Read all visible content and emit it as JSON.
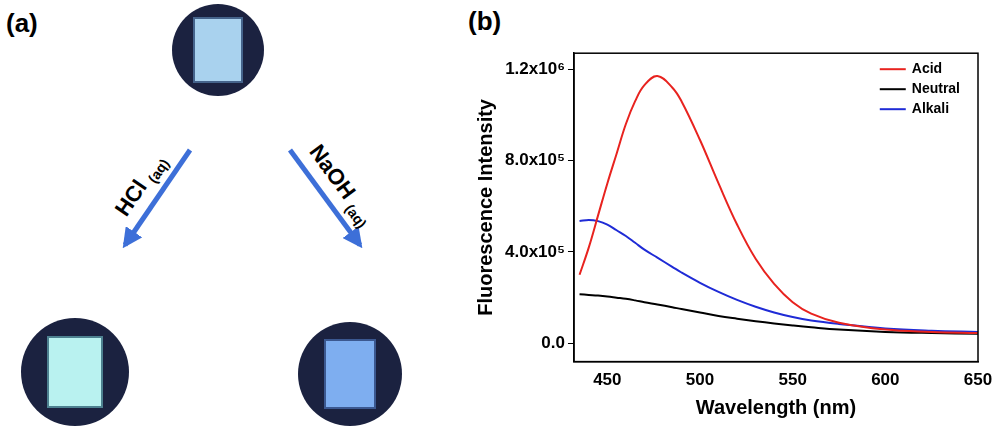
{
  "panels": {
    "a": {
      "label": "(a)",
      "arrows": [
        {
          "reagent": "HCl",
          "subscript": "(aq)"
        },
        {
          "reagent": "NaOH",
          "subscript": "(aq)"
        }
      ]
    },
    "b": {
      "label": "(b)"
    }
  },
  "chart_data": {
    "type": "line",
    "x_label": "Wavelength (nm)",
    "y_label": "Fluorescence Intensity",
    "x": [
      435,
      440,
      445,
      450,
      455,
      460,
      465,
      470,
      477,
      485,
      490,
      500,
      510,
      520,
      530,
      540,
      550,
      560,
      575,
      600,
      625,
      650
    ],
    "series": [
      {
        "name": "Acid",
        "color": "#e8231f",
        "values": [
          300000,
          420000,
          560000,
          700000,
          830000,
          960000,
          1060000,
          1130000,
          1170000,
          1120000,
          1060000,
          890000,
          700000,
          520000,
          370000,
          260000,
          180000,
          130000,
          90000,
          60000,
          50000,
          45000
        ]
      },
      {
        "name": "Neutral",
        "color": "#000000",
        "values": [
          215000,
          212000,
          209000,
          205000,
          200000,
          195000,
          188000,
          180000,
          170000,
          158000,
          150000,
          135000,
          120000,
          108000,
          97000,
          87000,
          78000,
          70000,
          60000,
          50000,
          45000,
          42000
        ]
      },
      {
        "name": "Alkali",
        "color": "#1f2bd6",
        "values": [
          535000,
          540000,
          535000,
          520000,
          495000,
          470000,
          440000,
          410000,
          375000,
          335000,
          310000,
          265000,
          225000,
          190000,
          160000,
          135000,
          115000,
          100000,
          85000,
          65000,
          55000,
          50000
        ]
      }
    ],
    "xlim": [
      432,
      650
    ],
    "xticks": [
      450,
      500,
      550,
      600,
      650
    ],
    "ylim": [
      -80000,
      1270000
    ],
    "yticks": [
      {
        "value": 0,
        "label": "0.0"
      },
      {
        "value": 400000,
        "label": "4.0x10⁵"
      },
      {
        "value": 800000,
        "label": "8.0x10⁵"
      },
      {
        "value": 1200000,
        "label": "1.2x10⁶"
      }
    ],
    "grid": false,
    "legend": "upper right"
  }
}
